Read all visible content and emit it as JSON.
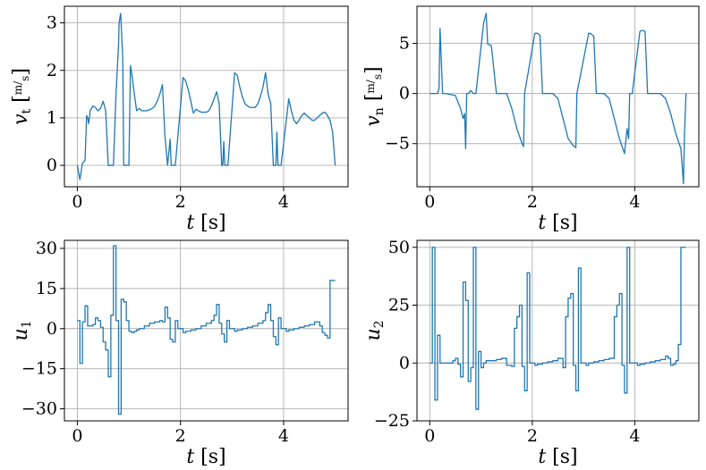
{
  "chart_data": [
    {
      "type": "line",
      "title": "",
      "xlabel": "t [s]",
      "ylabel": "v_t [m/s]",
      "xlabel_parts": {
        "var": "t",
        "unit": "[s]"
      },
      "ylabel_parts": {
        "var": "v",
        "sub": "t",
        "unit_num": "m",
        "unit_den": "s"
      },
      "xlim": [
        -0.25,
        5.25
      ],
      "ylim": [
        -0.45,
        3.35
      ],
      "grid": true,
      "xticks": [
        {
          "v": 0,
          "label": "0"
        },
        {
          "v": 2,
          "label": "2"
        },
        {
          "v": 4,
          "label": "4"
        }
      ],
      "yticks": [
        {
          "v": 0,
          "label": "0"
        },
        {
          "v": 1,
          "label": "1"
        },
        {
          "v": 2,
          "label": "2"
        },
        {
          "v": 3,
          "label": "3"
        }
      ],
      "series": [
        {
          "color": "#1f77b4",
          "x": [
            0.0,
            0.05,
            0.1,
            0.15,
            0.18,
            0.2,
            0.22,
            0.25,
            0.3,
            0.35,
            0.4,
            0.45,
            0.5,
            0.55,
            0.6,
            0.65,
            0.7,
            0.75,
            0.8,
            0.81,
            0.84,
            0.88,
            0.9,
            0.93,
            0.97,
            1.0,
            1.03,
            1.06,
            1.1,
            1.15,
            1.2,
            1.25,
            1.3,
            1.35,
            1.4,
            1.45,
            1.5,
            1.55,
            1.6,
            1.65,
            1.7,
            1.75,
            1.8,
            1.82,
            1.85,
            1.87,
            1.88,
            1.9,
            2.05,
            2.1,
            2.15,
            2.2,
            2.25,
            2.3,
            2.35,
            2.4,
            2.45,
            2.5,
            2.55,
            2.6,
            2.65,
            2.7,
            2.75,
            2.8,
            2.82,
            2.84,
            2.86,
            2.88,
            2.92,
            3.05,
            3.1,
            3.15,
            3.2,
            3.25,
            3.3,
            3.35,
            3.4,
            3.45,
            3.5,
            3.55,
            3.6,
            3.65,
            3.7,
            3.75,
            3.8,
            3.85,
            3.87,
            3.89,
            3.91,
            3.93,
            3.95,
            4.1,
            4.15,
            4.2,
            4.25,
            4.3,
            4.35,
            4.4,
            4.45,
            4.5,
            4.55,
            4.6,
            4.65,
            4.7,
            4.75,
            4.8,
            4.85,
            4.9,
            4.95,
            5.0
          ],
          "y": [
            0.0,
            -0.3,
            0.05,
            0.1,
            1.05,
            1.0,
            0.88,
            1.15,
            1.25,
            1.22,
            1.15,
            1.2,
            1.35,
            1.15,
            0.0,
            0.0,
            0.0,
            1.5,
            2.55,
            3.0,
            3.2,
            2.3,
            0.0,
            0.0,
            0.0,
            0.0,
            2.1,
            1.9,
            1.55,
            1.15,
            1.2,
            1.15,
            1.15,
            1.15,
            1.17,
            1.2,
            1.25,
            1.35,
            1.5,
            1.7,
            0.6,
            0.0,
            0.55,
            0.0,
            0.0,
            0.0,
            0.0,
            0.0,
            1.85,
            1.78,
            1.6,
            1.35,
            1.1,
            1.18,
            1.15,
            1.12,
            1.12,
            1.12,
            1.15,
            1.25,
            1.4,
            1.55,
            1.3,
            0.0,
            0.0,
            0.5,
            0.0,
            0.0,
            0.0,
            1.95,
            1.9,
            1.65,
            1.45,
            1.3,
            1.25,
            1.22,
            1.22,
            1.22,
            1.3,
            1.45,
            1.65,
            1.95,
            1.5,
            1.3,
            0.0,
            0.0,
            0.7,
            0.0,
            0.0,
            0.0,
            0.0,
            1.4,
            1.15,
            0.95,
            0.88,
            0.95,
            1.05,
            1.1,
            1.05,
            1.0,
            0.95,
            0.95,
            1.0,
            1.05,
            1.1,
            1.12,
            1.05,
            0.95,
            0.7,
            0.0
          ]
        }
      ]
    },
    {
      "type": "line",
      "title": "",
      "xlabel": "t [s]",
      "ylabel": "v_n [m/s]",
      "xlabel_parts": {
        "var": "t",
        "unit": "[s]"
      },
      "ylabel_parts": {
        "var": "v",
        "sub": "n",
        "unit_num": "m",
        "unit_den": "s"
      },
      "xlim": [
        -0.25,
        5.25
      ],
      "ylim": [
        -9.3,
        8.7
      ],
      "grid": true,
      "xticks": [
        {
          "v": 0,
          "label": "0"
        },
        {
          "v": 2,
          "label": "2"
        },
        {
          "v": 4,
          "label": "4"
        }
      ],
      "yticks": [
        {
          "v": -5,
          "label": "−5"
        },
        {
          "v": 0,
          "label": "0"
        },
        {
          "v": 5,
          "label": "5"
        }
      ],
      "series": [
        {
          "color": "#1f77b4",
          "x": [
            0.0,
            0.1,
            0.15,
            0.18,
            0.2,
            0.25,
            0.3,
            0.5,
            0.6,
            0.65,
            0.68,
            0.7,
            0.72,
            0.75,
            0.8,
            0.85,
            0.88,
            0.9,
            1.05,
            1.1,
            1.13,
            1.2,
            1.3,
            1.4,
            1.5,
            1.6,
            1.7,
            1.8,
            1.83,
            1.85,
            2.05,
            2.1,
            2.15,
            2.2,
            2.4,
            2.5,
            2.6,
            2.7,
            2.8,
            2.85,
            2.87,
            3.1,
            3.13,
            3.2,
            3.25,
            3.3,
            3.4,
            3.5,
            3.6,
            3.7,
            3.8,
            3.85,
            3.88,
            3.9,
            3.95,
            4.1,
            4.15,
            4.2,
            4.25,
            4.3,
            4.4,
            4.5,
            4.6,
            4.7,
            4.8,
            4.9,
            4.95,
            4.97,
            5.0
          ],
          "y": [
            0.0,
            0.0,
            0.0,
            0.5,
            6.5,
            0.0,
            0.0,
            -0.2,
            -1.5,
            -2.5,
            -2.0,
            -5.5,
            0.0,
            0.0,
            0.3,
            0.0,
            0.0,
            0.0,
            7.0,
            8.0,
            4.9,
            4.8,
            0.0,
            0.0,
            0.0,
            -1.5,
            -3.5,
            -5.0,
            -5.3,
            0.0,
            6.0,
            6.0,
            5.8,
            0.0,
            0.0,
            -0.5,
            -2.5,
            -4.5,
            -5.2,
            -5.4,
            0.0,
            6.0,
            6.0,
            5.7,
            0.0,
            0.0,
            0.0,
            -0.5,
            -2.5,
            -4.5,
            -6.0,
            -3.5,
            -4.5,
            0.0,
            0.0,
            6.2,
            6.3,
            6.2,
            0.0,
            0.0,
            0.0,
            0.0,
            -0.5,
            -2.0,
            -4.0,
            -5.5,
            -9.0,
            -4.0,
            0.0
          ]
        }
      ]
    },
    {
      "type": "line",
      "title": "",
      "xlabel": "t [s]",
      "ylabel": "u_1",
      "xlabel_parts": {
        "var": "t",
        "unit": "[s]"
      },
      "ylabel_parts": {
        "var": "u",
        "sub": "1"
      },
      "xlim": [
        -0.25,
        5.25
      ],
      "ylim": [
        -34.5,
        33.0
      ],
      "grid": true,
      "xticks": [
        {
          "v": 0,
          "label": "0"
        },
        {
          "v": 2,
          "label": "2"
        },
        {
          "v": 4,
          "label": "4"
        }
      ],
      "yticks": [
        {
          "v": -30,
          "label": "−30"
        },
        {
          "v": -15,
          "label": "−15"
        },
        {
          "v": 0,
          "label": "0"
        },
        {
          "v": 15,
          "label": "15"
        },
        {
          "v": 30,
          "label": "30"
        }
      ],
      "series": [
        {
          "color": "#1f77b4",
          "step": true,
          "x": [
            0.0,
            0.05,
            0.1,
            0.15,
            0.2,
            0.3,
            0.35,
            0.4,
            0.45,
            0.5,
            0.55,
            0.6,
            0.65,
            0.7,
            0.75,
            0.8,
            0.85,
            0.9,
            0.95,
            1.0,
            1.05,
            1.1,
            1.15,
            1.2,
            1.3,
            1.4,
            1.5,
            1.6,
            1.65,
            1.7,
            1.75,
            1.8,
            1.85,
            1.9,
            1.95,
            2.05,
            2.1,
            2.2,
            2.3,
            2.4,
            2.5,
            2.6,
            2.65,
            2.7,
            2.75,
            2.8,
            2.85,
            2.9,
            2.95,
            3.05,
            3.1,
            3.2,
            3.3,
            3.4,
            3.5,
            3.6,
            3.65,
            3.7,
            3.75,
            3.8,
            3.85,
            3.9,
            3.95,
            4.05,
            4.1,
            4.2,
            4.3,
            4.4,
            4.5,
            4.6,
            4.7,
            4.75,
            4.8,
            4.85,
            4.9,
            4.95,
            5.0
          ],
          "y": [
            3.0,
            -13.0,
            2.5,
            8.5,
            1.0,
            1.5,
            4.0,
            3.0,
            0.5,
            -5.0,
            -8.0,
            -18.0,
            5.0,
            31.0,
            3.0,
            -32.0,
            11.0,
            10.0,
            3.0,
            -1.0,
            -1.5,
            -1.0,
            -0.5,
            0.0,
            1.0,
            2.0,
            2.5,
            3.0,
            2.5,
            8.0,
            4.0,
            -4.0,
            -5.0,
            3.0,
            0.0,
            -1.5,
            -1.0,
            -0.5,
            0.0,
            1.0,
            2.0,
            3.0,
            5.0,
            9.0,
            2.0,
            -2.0,
            -5.0,
            3.0,
            0.0,
            -1.0,
            -0.5,
            0.0,
            0.5,
            1.0,
            2.0,
            3.0,
            6.0,
            9.0,
            3.0,
            -3.0,
            -6.0,
            4.0,
            0.0,
            -1.0,
            -0.5,
            0.0,
            0.5,
            1.0,
            1.5,
            2.5,
            1.0,
            -1.5,
            -2.5,
            -3.5,
            18.0,
            18.0,
            18.0
          ]
        }
      ]
    },
    {
      "type": "line",
      "title": "",
      "xlabel": "t [s]",
      "ylabel": "u_2",
      "xlabel_parts": {
        "var": "t",
        "unit": "[s]"
      },
      "ylabel_parts": {
        "var": "u",
        "sub": "2"
      },
      "xlim": [
        -0.25,
        5.25
      ],
      "ylim": [
        -25.0,
        53.0
      ],
      "grid": true,
      "xticks": [
        {
          "v": 0,
          "label": "0"
        },
        {
          "v": 2,
          "label": "2"
        },
        {
          "v": 4,
          "label": "4"
        }
      ],
      "yticks": [
        {
          "v": -25,
          "label": "−25"
        },
        {
          "v": 0,
          "label": "0"
        },
        {
          "v": 25,
          "label": "25"
        },
        {
          "v": 50,
          "label": "50"
        }
      ],
      "series": [
        {
          "color": "#1f77b4",
          "step": true,
          "x": [
            0.0,
            0.05,
            0.1,
            0.15,
            0.2,
            0.3,
            0.4,
            0.45,
            0.5,
            0.55,
            0.6,
            0.65,
            0.7,
            0.75,
            0.8,
            0.85,
            0.9,
            0.95,
            1.0,
            1.05,
            1.1,
            1.15,
            1.2,
            1.3,
            1.4,
            1.5,
            1.6,
            1.65,
            1.7,
            1.75,
            1.8,
            1.85,
            1.9,
            1.95,
            2.05,
            2.1,
            2.2,
            2.3,
            2.4,
            2.5,
            2.6,
            2.65,
            2.7,
            2.75,
            2.8,
            2.85,
            2.9,
            2.95,
            3.05,
            3.1,
            3.2,
            3.3,
            3.4,
            3.5,
            3.6,
            3.65,
            3.7,
            3.75,
            3.8,
            3.85,
            3.9,
            3.95,
            4.05,
            4.1,
            4.2,
            4.3,
            4.4,
            4.5,
            4.6,
            4.65,
            4.7,
            4.75,
            4.8,
            4.85,
            4.9,
            4.95,
            5.0
          ],
          "y": [
            0.0,
            50.0,
            -16.0,
            12.0,
            0.0,
            0.0,
            0.0,
            1.0,
            2.0,
            -0.5,
            -6.0,
            35.0,
            27.0,
            -8.0,
            -2.0,
            50.0,
            -20.0,
            5.0,
            -2.0,
            0.0,
            1.0,
            1.0,
            1.0,
            1.5,
            2.0,
            -1.0,
            -1.5,
            15.0,
            20.0,
            25.0,
            -1.5,
            -12.0,
            39.0,
            0.0,
            -1.0,
            -0.5,
            0.0,
            0.5,
            1.0,
            2.0,
            -2.0,
            20.0,
            28.0,
            30.0,
            -1.0,
            -12.0,
            41.0,
            0.0,
            -1.0,
            0.0,
            0.5,
            1.0,
            1.5,
            2.0,
            20.0,
            25.0,
            30.0,
            -1.0,
            -13.0,
            50.0,
            0.0,
            0.0,
            -1.0,
            -0.5,
            0.0,
            0.5,
            1.0,
            1.5,
            3.0,
            2.0,
            -1.0,
            -0.5,
            1.0,
            8.0,
            50.0,
            50.0,
            50.0
          ]
        }
      ]
    }
  ]
}
